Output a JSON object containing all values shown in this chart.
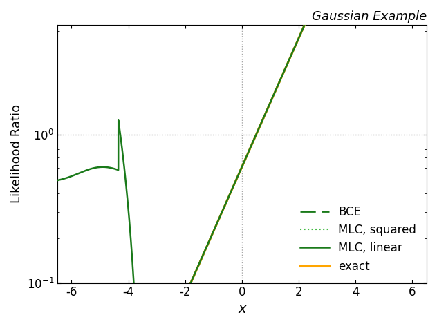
{
  "title": "Gaussian Example",
  "xlabel": "x",
  "ylabel": "Likelihood Ratio",
  "xlim": [
    -6.5,
    6.5
  ],
  "ylim": [
    0.1,
    5.5
  ],
  "x_ticks": [
    -6,
    -4,
    -2,
    0,
    2,
    4,
    6
  ],
  "color_exact": "#FFA500",
  "color_bce": "#1a7a1a",
  "color_mlc_sq": "#44bb44",
  "color_mlc_lin": "#1a7a1a",
  "lw_exact": 2.2,
  "lw_bce": 2.0,
  "lw_mlc_sq": 1.5,
  "lw_mlc_lin": 1.8
}
